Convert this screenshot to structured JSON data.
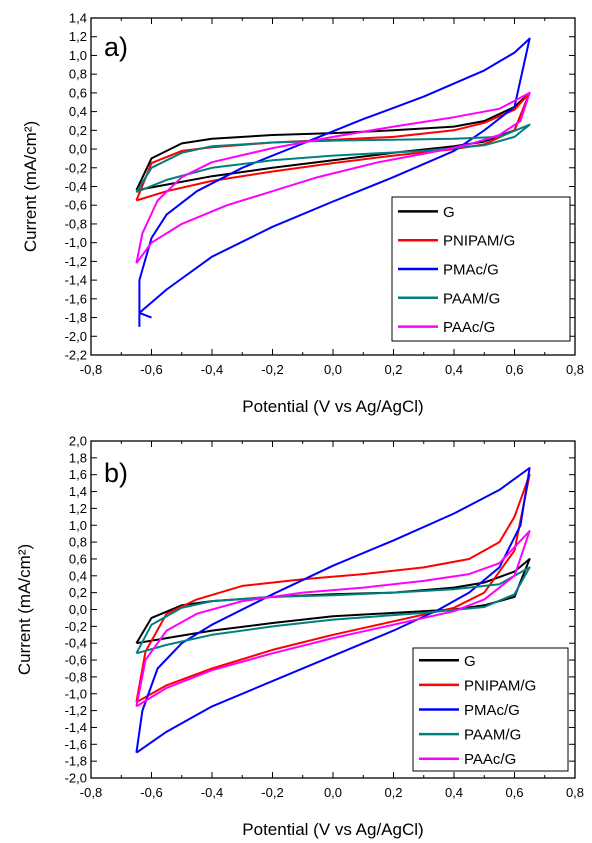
{
  "chart_data": [
    {
      "type": "line",
      "panel_label": "a)",
      "xlabel": "Potential (V vs Ag/AgCl)",
      "ylabel": "Current (mA/cm²)",
      "xlim": [
        -0.8,
        0.8
      ],
      "ylim": [
        -2.2,
        1.4
      ],
      "xticks": [
        "-0,8",
        "-0,6",
        "-0,4",
        "-0,2",
        "0,0",
        "0,2",
        "0,4",
        "0,6",
        "0,8"
      ],
      "yticks": [
        "1,4",
        "1,2",
        "1,0",
        "0,8",
        "0,6",
        "0,4",
        "0,2",
        "0,0",
        "-0,2",
        "-0,4",
        "-0,6",
        "-0,8",
        "-1,0",
        "-1,2",
        "-1,4",
        "-1,6",
        "-1,8",
        "-2,0",
        "-2,2"
      ],
      "grid": false,
      "legend_position": "bottom-right",
      "series": [
        {
          "name": "G",
          "color": "#000000",
          "points": [
            [
              -0.65,
              -0.44
            ],
            [
              -0.6,
              -0.1
            ],
            [
              -0.5,
              0.06
            ],
            [
              -0.4,
              0.11
            ],
            [
              -0.2,
              0.15
            ],
            [
              0.0,
              0.17
            ],
            [
              0.2,
              0.2
            ],
            [
              0.4,
              0.24
            ],
            [
              0.5,
              0.3
            ],
            [
              0.6,
              0.45
            ],
            [
              0.65,
              0.6
            ],
            [
              0.6,
              0.2
            ],
            [
              0.5,
              0.08
            ],
            [
              0.4,
              0.03
            ],
            [
              0.2,
              -0.04
            ],
            [
              0.0,
              -0.12
            ],
            [
              -0.2,
              -0.2
            ],
            [
              -0.4,
              -0.29
            ],
            [
              -0.55,
              -0.38
            ],
            [
              -0.65,
              -0.44
            ]
          ]
        },
        {
          "name": "PNIPAM/G",
          "color": "#ff0000",
          "points": [
            [
              -0.65,
              -0.55
            ],
            [
              -0.6,
              -0.15
            ],
            [
              -0.5,
              -0.02
            ],
            [
              -0.4,
              0.02
            ],
            [
              -0.2,
              0.07
            ],
            [
              0.0,
              0.1
            ],
            [
              0.2,
              0.13
            ],
            [
              0.4,
              0.2
            ],
            [
              0.5,
              0.28
            ],
            [
              0.6,
              0.42
            ],
            [
              0.65,
              0.6
            ],
            [
              0.6,
              0.2
            ],
            [
              0.5,
              0.05
            ],
            [
              0.4,
              0.0
            ],
            [
              0.2,
              -0.07
            ],
            [
              0.0,
              -0.15
            ],
            [
              -0.2,
              -0.24
            ],
            [
              -0.4,
              -0.34
            ],
            [
              -0.55,
              -0.45
            ],
            [
              -0.65,
              -0.55
            ]
          ]
        },
        {
          "name": "PMAc/G",
          "color": "#0000ff",
          "points": [
            [
              -0.64,
              -1.9
            ],
            [
              -0.64,
              -1.4
            ],
            [
              -0.6,
              -0.95
            ],
            [
              -0.55,
              -0.7
            ],
            [
              -0.45,
              -0.45
            ],
            [
              -0.3,
              -0.2
            ],
            [
              -0.1,
              0.06
            ],
            [
              0.1,
              0.32
            ],
            [
              0.3,
              0.56
            ],
            [
              0.5,
              0.84
            ],
            [
              0.6,
              1.03
            ],
            [
              0.65,
              1.18
            ],
            [
              0.6,
              0.45
            ],
            [
              0.5,
              0.2
            ],
            [
              0.4,
              -0.02
            ],
            [
              0.2,
              -0.3
            ],
            [
              0.0,
              -0.56
            ],
            [
              -0.2,
              -0.83
            ],
            [
              -0.4,
              -1.15
            ],
            [
              -0.55,
              -1.5
            ],
            [
              -0.64,
              -1.75
            ],
            [
              -0.6,
              -1.8
            ]
          ]
        },
        {
          "name": "PAAM/G",
          "color": "#008080",
          "points": [
            [
              -0.65,
              -0.46
            ],
            [
              -0.6,
              -0.2
            ],
            [
              -0.5,
              -0.04
            ],
            [
              -0.4,
              0.03
            ],
            [
              -0.2,
              0.07
            ],
            [
              0.0,
              0.09
            ],
            [
              0.2,
              0.1
            ],
            [
              0.4,
              0.11
            ],
            [
              0.55,
              0.13
            ],
            [
              0.65,
              0.26
            ],
            [
              0.6,
              0.13
            ],
            [
              0.5,
              0.04
            ],
            [
              0.3,
              -0.02
            ],
            [
              0.0,
              -0.07
            ],
            [
              -0.2,
              -0.12
            ],
            [
              -0.4,
              -0.2
            ],
            [
              -0.55,
              -0.33
            ],
            [
              -0.65,
              -0.46
            ]
          ]
        },
        {
          "name": "PAAc/G",
          "color": "#ff00ff",
          "points": [
            [
              -0.65,
              -1.22
            ],
            [
              -0.63,
              -0.9
            ],
            [
              -0.58,
              -0.55
            ],
            [
              -0.5,
              -0.3
            ],
            [
              -0.4,
              -0.14
            ],
            [
              -0.2,
              0.01
            ],
            [
              0.0,
              0.13
            ],
            [
              0.2,
              0.24
            ],
            [
              0.4,
              0.34
            ],
            [
              0.55,
              0.43
            ],
            [
              0.65,
              0.6
            ],
            [
              0.62,
              0.3
            ],
            [
              0.55,
              0.15
            ],
            [
              0.45,
              0.05
            ],
            [
              0.35,
              -0.02
            ],
            [
              0.15,
              -0.14
            ],
            [
              -0.05,
              -0.3
            ],
            [
              -0.2,
              -0.45
            ],
            [
              -0.35,
              -0.6
            ],
            [
              -0.5,
              -0.8
            ],
            [
              -0.6,
              -1.0
            ],
            [
              -0.65,
              -1.22
            ]
          ]
        }
      ]
    },
    {
      "type": "line",
      "panel_label": "b)",
      "xlabel": "Potential (V vs Ag/AgCl)",
      "ylabel": "Current (mA/cm²)",
      "xlim": [
        -0.8,
        0.8
      ],
      "ylim": [
        -2.0,
        2.0
      ],
      "xticks": [
        "-0,8",
        "-0,6",
        "-0,4",
        "-0,2",
        "0,0",
        "0,2",
        "0,4",
        "0,6",
        "0,8"
      ],
      "yticks": [
        "2,0",
        "1,8",
        "1,6",
        "1,4",
        "1,2",
        "1,0",
        "0,8",
        "0,6",
        "0,4",
        "0,2",
        "0,0",
        "-0,2",
        "-0,4",
        "-0,6",
        "-0,8",
        "-1,0",
        "-1,2",
        "-1,4",
        "-1,6",
        "-1,8",
        "-2,0"
      ],
      "grid": false,
      "legend_position": "bottom-right",
      "series": [
        {
          "name": "G",
          "color": "#000000",
          "points": [
            [
              -0.65,
              -0.4
            ],
            [
              -0.6,
              -0.1
            ],
            [
              -0.5,
              0.05
            ],
            [
              -0.4,
              0.1
            ],
            [
              -0.2,
              0.15
            ],
            [
              0.0,
              0.18
            ],
            [
              0.2,
              0.2
            ],
            [
              0.4,
              0.26
            ],
            [
              0.5,
              0.32
            ],
            [
              0.6,
              0.45
            ],
            [
              0.65,
              0.6
            ],
            [
              0.6,
              0.15
            ],
            [
              0.5,
              0.05
            ],
            [
              0.4,
              0.0
            ],
            [
              0.2,
              -0.04
            ],
            [
              0.0,
              -0.08
            ],
            [
              -0.2,
              -0.16
            ],
            [
              -0.4,
              -0.25
            ],
            [
              -0.55,
              -0.34
            ],
            [
              -0.65,
              -0.4
            ]
          ]
        },
        {
          "name": "PNIPAM/G",
          "color": "#ff0000",
          "points": [
            [
              -0.65,
              -1.1
            ],
            [
              -0.62,
              -0.5
            ],
            [
              -0.55,
              -0.05
            ],
            [
              -0.45,
              0.12
            ],
            [
              -0.3,
              0.28
            ],
            [
              -0.1,
              0.36
            ],
            [
              0.1,
              0.42
            ],
            [
              0.3,
              0.5
            ],
            [
              0.45,
              0.6
            ],
            [
              0.55,
              0.8
            ],
            [
              0.6,
              1.1
            ],
            [
              0.65,
              1.6
            ],
            [
              0.6,
              0.7
            ],
            [
              0.5,
              0.2
            ],
            [
              0.4,
              0.02
            ],
            [
              0.2,
              -0.14
            ],
            [
              0.0,
              -0.3
            ],
            [
              -0.2,
              -0.48
            ],
            [
              -0.4,
              -0.7
            ],
            [
              -0.55,
              -0.9
            ],
            [
              -0.65,
              -1.1
            ]
          ]
        },
        {
          "name": "PMAc/G",
          "color": "#0000ff",
          "points": [
            [
              -0.65,
              -1.7
            ],
            [
              -0.63,
              -1.2
            ],
            [
              -0.58,
              -0.7
            ],
            [
              -0.5,
              -0.4
            ],
            [
              -0.4,
              -0.18
            ],
            [
              -0.2,
              0.18
            ],
            [
              0.0,
              0.52
            ],
            [
              0.2,
              0.82
            ],
            [
              0.4,
              1.14
            ],
            [
              0.55,
              1.42
            ],
            [
              0.65,
              1.68
            ],
            [
              0.62,
              1.0
            ],
            [
              0.55,
              0.5
            ],
            [
              0.45,
              0.2
            ],
            [
              0.35,
              0.0
            ],
            [
              0.2,
              -0.25
            ],
            [
              0.0,
              -0.55
            ],
            [
              -0.2,
              -0.85
            ],
            [
              -0.4,
              -1.15
            ],
            [
              -0.55,
              -1.45
            ],
            [
              -0.65,
              -1.7
            ]
          ]
        },
        {
          "name": "PAAM/G",
          "color": "#008080",
          "points": [
            [
              -0.65,
              -0.52
            ],
            [
              -0.6,
              -0.18
            ],
            [
              -0.5,
              0.02
            ],
            [
              -0.4,
              0.1
            ],
            [
              -0.2,
              0.15
            ],
            [
              0.0,
              0.17
            ],
            [
              0.2,
              0.2
            ],
            [
              0.4,
              0.24
            ],
            [
              0.55,
              0.3
            ],
            [
              0.65,
              0.5
            ],
            [
              0.6,
              0.18
            ],
            [
              0.5,
              0.03
            ],
            [
              0.3,
              -0.04
            ],
            [
              0.0,
              -0.12
            ],
            [
              -0.2,
              -0.2
            ],
            [
              -0.4,
              -0.3
            ],
            [
              -0.55,
              -0.42
            ],
            [
              -0.65,
              -0.52
            ]
          ]
        },
        {
          "name": "PAAc/G",
          "color": "#ff00ff",
          "points": [
            [
              -0.65,
              -1.15
            ],
            [
              -0.62,
              -0.6
            ],
            [
              -0.55,
              -0.25
            ],
            [
              -0.45,
              -0.05
            ],
            [
              -0.3,
              0.1
            ],
            [
              -0.1,
              0.2
            ],
            [
              0.1,
              0.26
            ],
            [
              0.3,
              0.34
            ],
            [
              0.45,
              0.42
            ],
            [
              0.55,
              0.55
            ],
            [
              0.65,
              0.93
            ],
            [
              0.6,
              0.4
            ],
            [
              0.5,
              0.12
            ],
            [
              0.4,
              -0.02
            ],
            [
              0.2,
              -0.18
            ],
            [
              0.0,
              -0.34
            ],
            [
              -0.2,
              -0.52
            ],
            [
              -0.4,
              -0.72
            ],
            [
              -0.55,
              -0.93
            ],
            [
              -0.65,
              -1.15
            ]
          ]
        }
      ]
    }
  ]
}
